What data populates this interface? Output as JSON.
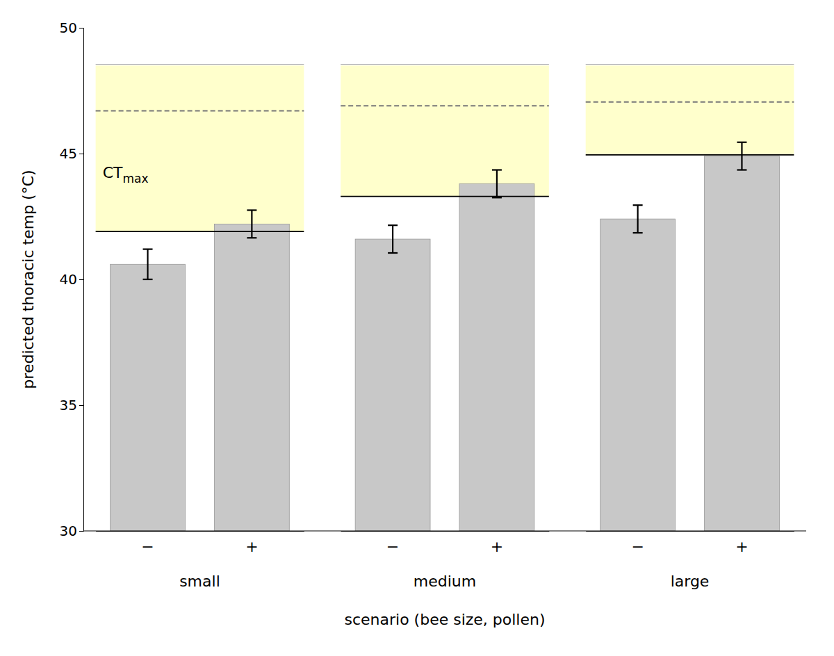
{
  "chart_data": {
    "type": "bar",
    "xlabel": "scenario (bee size, pollen)",
    "ylabel": "predicted thoracic temp (°C)",
    "ylim": [
      30,
      50
    ],
    "yticks": [
      30,
      35,
      40,
      45,
      50
    ],
    "grid": false,
    "color": "#c8c8c8",
    "shade_color": "#ffffcc",
    "shade_top": 48.5,
    "shade_top_line": 48.55,
    "groups": [
      {
        "name": "small",
        "categories": [
          "−",
          "+"
        ],
        "values": [
          40.6,
          42.2
        ],
        "errors": [
          0.6,
          0.55
        ],
        "solid_line": 41.9,
        "dashed_line": 46.7
      },
      {
        "name": "medium",
        "categories": [
          "−",
          "+"
        ],
        "values": [
          41.6,
          43.8
        ],
        "errors": [
          0.55,
          0.55
        ],
        "solid_line": 43.3,
        "dashed_line": 46.9
      },
      {
        "name": "large",
        "categories": [
          "−",
          "+"
        ],
        "values": [
          42.4,
          44.9
        ],
        "errors": [
          0.55,
          0.55
        ],
        "solid_line": 44.95,
        "dashed_line": 47.05
      }
    ],
    "annotation": {
      "text": "CT",
      "subscript": "max"
    }
  }
}
